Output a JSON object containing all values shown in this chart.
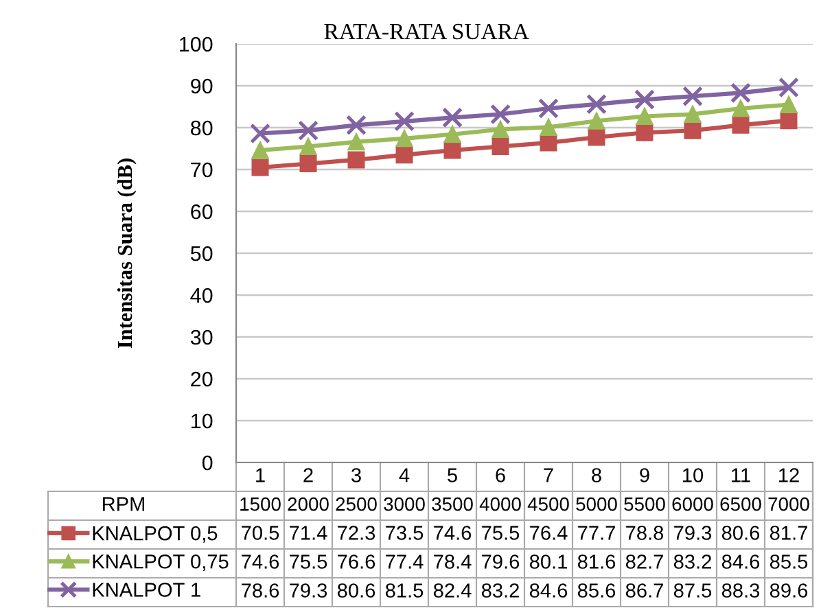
{
  "chart_data": {
    "type": "line",
    "title": "RATA-RATA SUARA",
    "ylabel": "Intensitas Suara (dB)",
    "xlabel": "RPM",
    "categories": [
      "1\n1500",
      "2\n2000",
      "3\n2500",
      "4\n3000",
      "5\n3500",
      "6\n4000",
      "7\n4500",
      "8\n5000",
      "9\n5500",
      "10\n6000",
      "11\n6500",
      "12\n7000"
    ],
    "series": [
      {
        "name": "KNALPOT 0,5",
        "color": "#c0504d",
        "marker": "square",
        "values": [
          70.5,
          71.4,
          72.3,
          73.5,
          74.6,
          75.5,
          76.4,
          77.7,
          78.8,
          79.3,
          80.6,
          81.7
        ]
      },
      {
        "name": "KNALPOT 0,75",
        "color": "#9bbb59",
        "marker": "triangle",
        "values": [
          74.6,
          75.5,
          76.6,
          77.4,
          78.4,
          79.6,
          80.1,
          81.6,
          82.7,
          83.2,
          84.6,
          85.5
        ]
      },
      {
        "name": "KNALPOT 1",
        "color": "#8064a2",
        "marker": "cross",
        "values": [
          78.6,
          79.3,
          80.6,
          81.5,
          82.4,
          83.2,
          84.6,
          85.6,
          86.7,
          87.5,
          88.3,
          89.6
        ]
      }
    ],
    "ylim": [
      0,
      100
    ],
    "yticks": [
      0,
      10,
      20,
      30,
      40,
      50,
      60,
      70,
      80,
      90,
      100
    ],
    "grid": "y",
    "data_labels": true,
    "legend": "bottom",
    "line_style": "solid"
  }
}
